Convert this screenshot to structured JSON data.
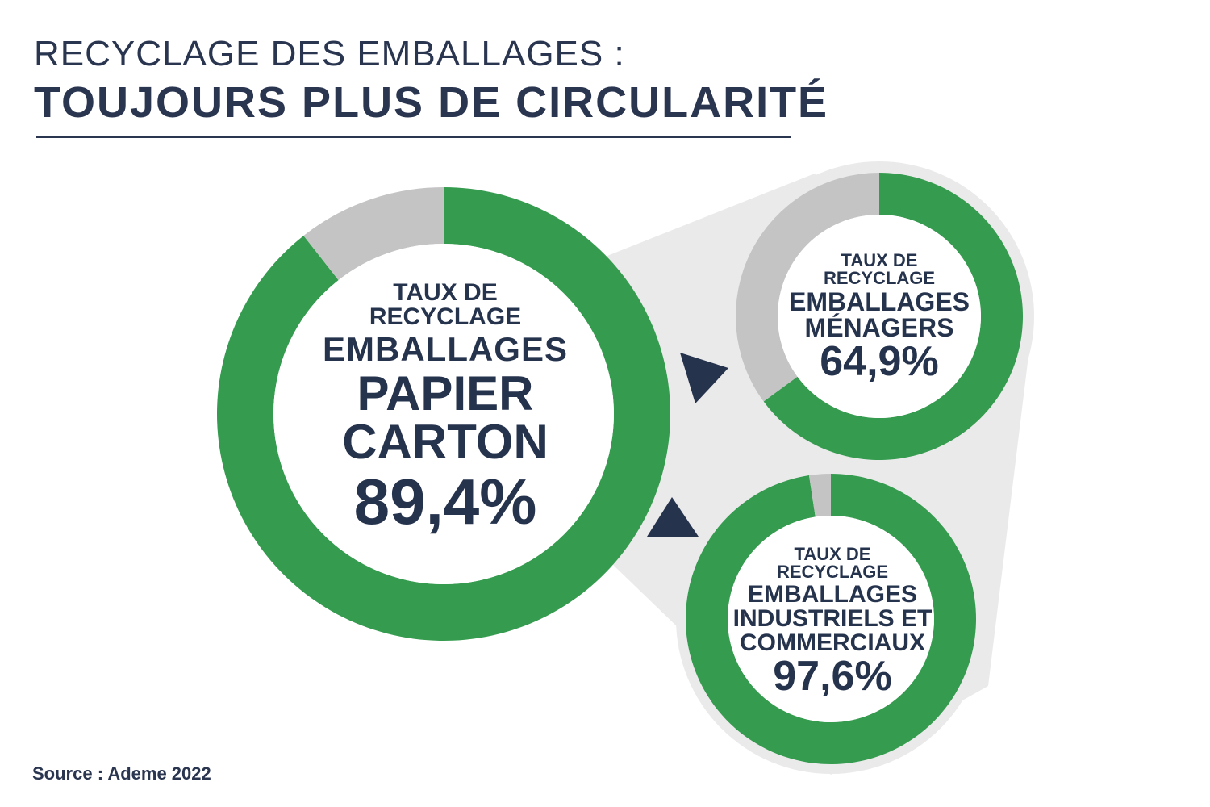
{
  "header": {
    "title_line1": "RECYCLAGE DES EMBALLAGES :",
    "title_line2": "TOUJOURS PLUS DE CIRCULARITÉ"
  },
  "colors": {
    "green": "#359b4f",
    "grey": "#c4c4c4",
    "navy": "#26334d",
    "halo": "#ebeaeb"
  },
  "chart_data": [
    {
      "type": "pie",
      "variant": "donut",
      "name": "papier-carton",
      "label_lines": [
        "TAUX DE",
        "RECYCLAGE",
        "EMBALLAGES",
        "PAPIER",
        "CARTON"
      ],
      "value": 89.4,
      "value_label": "89,4%"
    },
    {
      "type": "pie",
      "variant": "donut",
      "name": "menagers",
      "label_lines": [
        "TAUX DE",
        "RECYCLAGE",
        "EMBALLAGES",
        "MÉNAGERS"
      ],
      "value": 64.9,
      "value_label": "64,9%"
    },
    {
      "type": "pie",
      "variant": "donut",
      "name": "industriels-commerciaux",
      "label_lines": [
        "TAUX DE",
        "RECYCLAGE",
        "EMBALLAGES",
        "INDUSTRIELS ET",
        "COMMERCIAUX"
      ],
      "value": 97.6,
      "value_label": "97,6%"
    }
  ],
  "footer": {
    "source": "Source : Ademe 2022"
  }
}
